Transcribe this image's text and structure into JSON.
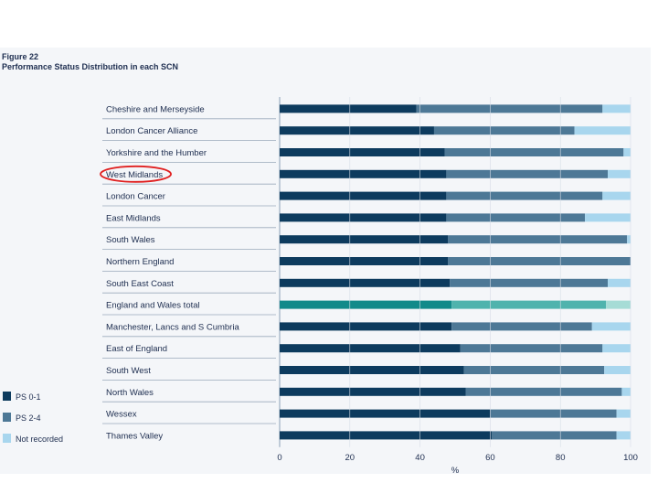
{
  "figure": {
    "number": "Figure 22",
    "title": "Performance Status Distribution in each SCN"
  },
  "chart_data": {
    "type": "bar",
    "orientation": "horizontal",
    "stacked": true,
    "xlabel": "%",
    "xlim": [
      0,
      100
    ],
    "xticks": [
      0,
      20,
      40,
      60,
      80,
      100
    ],
    "categories": [
      "Cheshire and Merseyside",
      "London Cancer Alliance",
      "Yorkshire and the Humber",
      "West Midlands",
      "London Cancer",
      "East Midlands",
      "South Wales",
      "Northern England",
      "South East Coast",
      "England and Wales total",
      "Manchester, Lancs and S Cumbria",
      "East of England",
      "South West",
      "North Wales",
      "Wessex",
      "Thames Valley"
    ],
    "series": [
      {
        "name": "PS 0-1",
        "color": "#0d3b5e",
        "values": [
          39,
          44,
          47,
          47.5,
          47.5,
          47.5,
          48,
          48,
          48.5,
          49,
          49,
          51.5,
          52.5,
          53,
          60,
          60.5
        ]
      },
      {
        "name": "PS 2-4",
        "color": "#4d7896",
        "values": [
          53,
          40,
          51,
          46,
          44.5,
          39.5,
          51,
          52,
          45,
          44,
          40,
          40.5,
          40,
          44.5,
          36,
          35.5
        ]
      },
      {
        "name": "Not recorded",
        "color": "#a8d6ee",
        "values": [
          8,
          16,
          2,
          6.5,
          8,
          13,
          1,
          0,
          6.5,
          7,
          11,
          8,
          7.5,
          2.5,
          4,
          4
        ]
      }
    ],
    "highlight_category": "England and Wales total",
    "highlight_colors": [
      "#128a8a",
      "#4fb3ad",
      "#a6dcd6"
    ],
    "annotation": {
      "type": "red-ellipse",
      "target": "West Midlands",
      "color": "#e02020"
    },
    "legend_position": "bottom-left"
  }
}
